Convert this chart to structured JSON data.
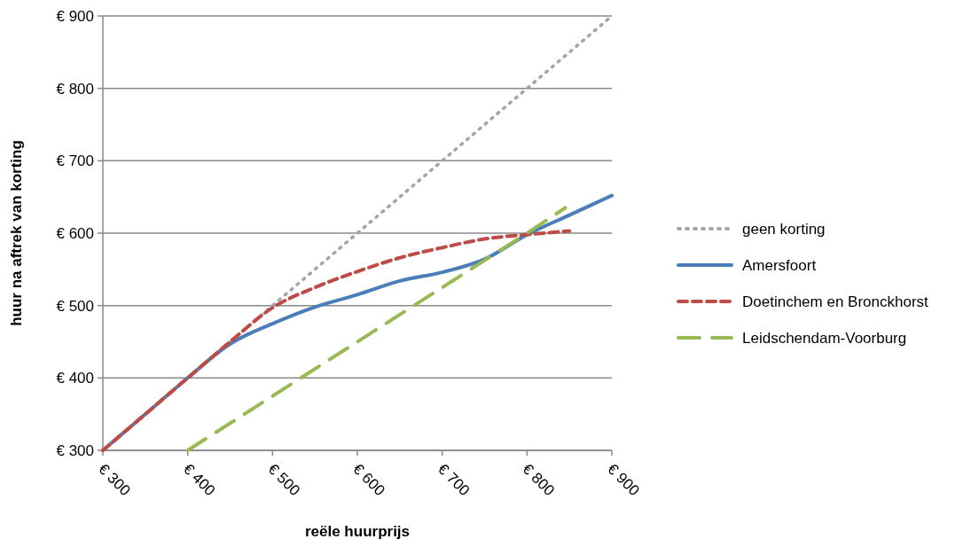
{
  "chart_data": {
    "type": "line",
    "xlabel": "reële huurprijs",
    "ylabel": "huur na aftrek van korting",
    "xlim": [
      300,
      900
    ],
    "ylim": [
      300,
      900
    ],
    "xticks": [
      {
        "value": 300,
        "label": "€ 300"
      },
      {
        "value": 400,
        "label": "€ 400"
      },
      {
        "value": 500,
        "label": "€ 500"
      },
      {
        "value": 600,
        "label": "€ 600"
      },
      {
        "value": 700,
        "label": "€ 700"
      },
      {
        "value": 800,
        "label": "€ 800"
      },
      {
        "value": 900,
        "label": "€ 900"
      }
    ],
    "yticks": [
      {
        "value": 300,
        "label": "€ 300"
      },
      {
        "value": 400,
        "label": "€ 400"
      },
      {
        "value": 500,
        "label": "€ 500"
      },
      {
        "value": 600,
        "label": "€ 600"
      },
      {
        "value": 700,
        "label": "€ 700"
      },
      {
        "value": 800,
        "label": "€ 800"
      },
      {
        "value": 900,
        "label": "€ 900"
      }
    ],
    "grid": "y",
    "legend": "right",
    "marker": "none",
    "series": [
      {
        "name": "geen korting",
        "color": "#a5a5a5",
        "line_style": "dotted",
        "x": [
          300,
          900
        ],
        "values": [
          300,
          900
        ]
      },
      {
        "name": "Amersfoort",
        "color": "#4a7ebb",
        "line_style": "solid",
        "x": [
          300,
          350,
          400,
          450,
          500,
          550,
          600,
          650,
          700,
          750,
          800,
          850,
          900
        ],
        "values": [
          300,
          350,
          400,
          447,
          475,
          498,
          515,
          534,
          546,
          564,
          598,
          625,
          652
        ]
      },
      {
        "name": "Doetinchem en Bronckhorst",
        "color": "#be4b48",
        "line_style": "dashed",
        "x": [
          300,
          350,
          400,
          450,
          500,
          550,
          600,
          650,
          700,
          750,
          800,
          850
        ],
        "values": [
          300,
          350,
          400,
          450,
          497,
          525,
          547,
          566,
          580,
          592,
          598,
          603
        ]
      },
      {
        "name": "Leidschendam-Voorburg",
        "color": "#98b954",
        "line_style": "longdash",
        "x": [
          400,
          500,
          600,
          700,
          760,
          800,
          845
        ],
        "values": [
          300,
          375,
          450,
          525,
          570,
          600,
          635
        ]
      }
    ]
  }
}
